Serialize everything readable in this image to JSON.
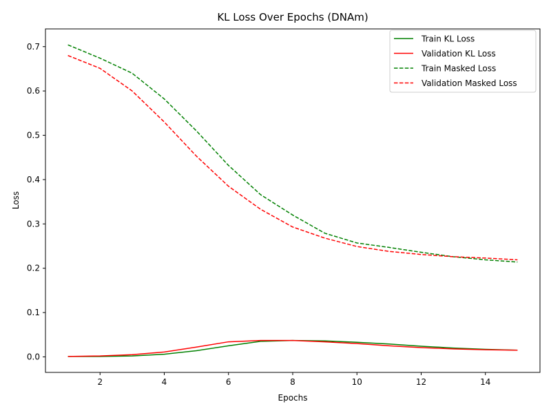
{
  "chart_data": {
    "type": "line",
    "title": "KL Loss Over Epochs (DNAm)",
    "xlabel": "Epochs",
    "ylabel": "Loss",
    "xlim": [
      0.3,
      15.7
    ],
    "ylim": [
      -0.035,
      0.74
    ],
    "xticks": [
      2,
      4,
      6,
      8,
      10,
      12,
      14
    ],
    "yticks": [
      0.0,
      0.1,
      0.2,
      0.3,
      0.4,
      0.5,
      0.6,
      0.7
    ],
    "ytick_labels": [
      "0.0",
      "0.1",
      "0.2",
      "0.3",
      "0.4",
      "0.5",
      "0.6",
      "0.7"
    ],
    "grid": false,
    "legend_position": "top-right",
    "x": [
      1,
      2,
      3,
      4,
      5,
      6,
      7,
      8,
      9,
      10,
      11,
      12,
      13,
      14,
      15
    ],
    "series": [
      {
        "name": "Train KL Loss",
        "color": "#008000",
        "style": "solid",
        "values": [
          0.001,
          0.001,
          0.002,
          0.006,
          0.014,
          0.025,
          0.035,
          0.037,
          0.036,
          0.033,
          0.029,
          0.024,
          0.02,
          0.017,
          0.015
        ]
      },
      {
        "name": "Validation KL Loss",
        "color": "#ff0000",
        "style": "solid",
        "values": [
          0.001,
          0.002,
          0.005,
          0.011,
          0.022,
          0.034,
          0.037,
          0.037,
          0.034,
          0.03,
          0.025,
          0.021,
          0.018,
          0.016,
          0.015
        ]
      },
      {
        "name": "Train Masked Loss",
        "color": "#008000",
        "style": "dashed",
        "values": [
          0.704,
          0.674,
          0.64,
          0.582,
          0.51,
          0.432,
          0.366,
          0.32,
          0.279,
          0.257,
          0.247,
          0.236,
          0.226,
          0.219,
          0.214
        ]
      },
      {
        "name": "Validation Masked Loss",
        "color": "#ff0000",
        "style": "dashed",
        "values": [
          0.68,
          0.651,
          0.6,
          0.53,
          0.453,
          0.385,
          0.333,
          0.293,
          0.268,
          0.249,
          0.238,
          0.231,
          0.226,
          0.223,
          0.219
        ]
      }
    ]
  }
}
